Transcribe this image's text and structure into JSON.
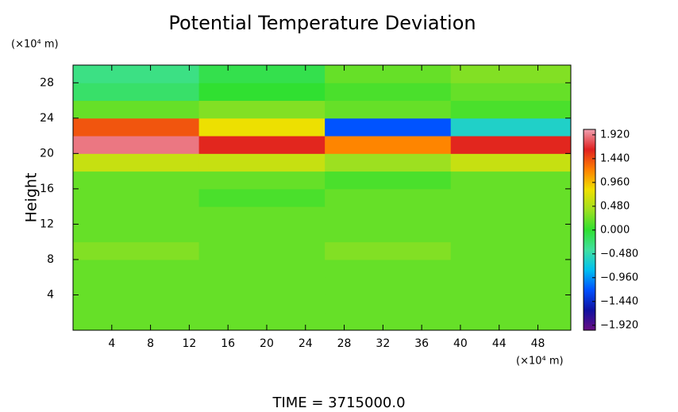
{
  "chart_data": {
    "type": "heatmap",
    "title": "Potential Temperature Deviation",
    "y_label": "Height",
    "x_unit": "(×10⁴ m)",
    "y_unit": "(×10⁴ m)",
    "footer": "TIME = 3715000.0",
    "xlim": [
      0,
      51.4
    ],
    "ylim": [
      0,
      30
    ],
    "xticks": [
      4,
      8,
      12,
      16,
      20,
      24,
      28,
      32,
      36,
      40,
      44,
      48
    ],
    "yticks": [
      4,
      8,
      12,
      16,
      20,
      24,
      28
    ],
    "x_edges": [
      0,
      13,
      26,
      39,
      51.4
    ],
    "y_edges": [
      0,
      2,
      4,
      6,
      8,
      10,
      12,
      14,
      16,
      18,
      20,
      22,
      24,
      26,
      28,
      30
    ],
    "z": [
      [
        0.2,
        0.2,
        0.2,
        0.2
      ],
      [
        0.2,
        0.2,
        0.2,
        0.2
      ],
      [
        0.2,
        0.2,
        0.2,
        0.2
      ],
      [
        0.2,
        0.2,
        0.2,
        0.2
      ],
      [
        0.3,
        0.2,
        0.3,
        0.2
      ],
      [
        0.2,
        0.2,
        0.2,
        0.2
      ],
      [
        0.2,
        0.2,
        0.2,
        0.2
      ],
      [
        0.2,
        0.1,
        0.2,
        0.2
      ],
      [
        0.2,
        0.2,
        0.1,
        0.2
      ],
      [
        0.6,
        0.6,
        0.4,
        0.6
      ],
      [
        1.9,
        1.6,
        1.2,
        1.6
      ],
      [
        1.4,
        0.8,
        -1.2,
        -0.6
      ],
      [
        0.2,
        0.3,
        0.2,
        0.1
      ],
      [
        -0.2,
        0.0,
        0.1,
        0.2
      ],
      [
        -0.3,
        -0.1,
        0.2,
        0.3
      ]
    ],
    "colormap": [
      "#6a0d83",
      "#1010a0",
      "#0050ff",
      "#00c0f0",
      "#40e0a0",
      "#30e030",
      "#a0e020",
      "#f0e000",
      "#ff8000",
      "#e02020",
      "#f0a0b0"
    ],
    "clim": [
      -2.02,
      2.03
    ],
    "cticks": [
      {
        "value": 1.92,
        "label": "1.920"
      },
      {
        "value": 1.44,
        "label": "1.440"
      },
      {
        "value": 0.96,
        "label": "0.960"
      },
      {
        "value": 0.48,
        "label": "0.480"
      },
      {
        "value": 0,
        "label": "0.000"
      },
      {
        "value": -0.48,
        "label": "−0.480"
      },
      {
        "value": -0.96,
        "label": "−0.960"
      },
      {
        "value": -1.44,
        "label": "−1.440"
      },
      {
        "value": -1.92,
        "label": "−1.920"
      }
    ]
  }
}
